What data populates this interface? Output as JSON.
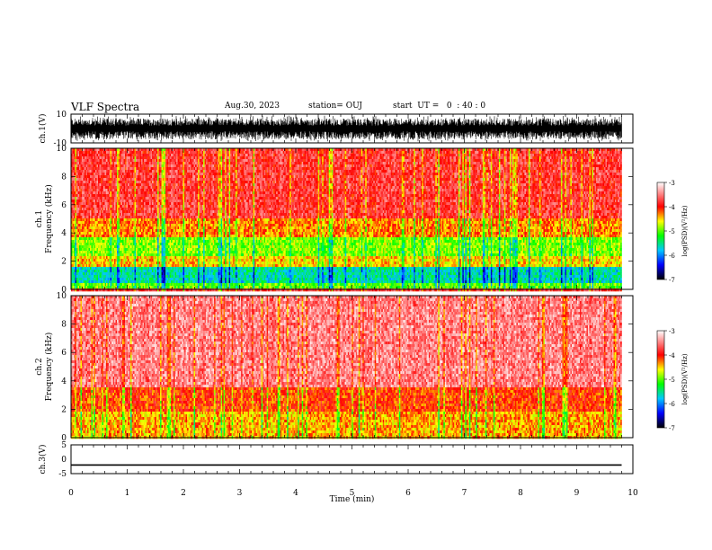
{
  "header": {
    "title": "VLF Spectra",
    "date": "Aug.30, 2023",
    "station": "station= OUJ",
    "start": "start  UT =   0  : 40 : 0"
  },
  "colors": {
    "axis": "#000000",
    "trace": "#000000",
    "colorbar_stops": [
      "#000000",
      "#0000ff",
      "#00c8ff",
      "#00ff00",
      "#ffff00",
      "#ff0000",
      "#ffffff"
    ]
  },
  "chart_data": [
    {
      "type": "line",
      "name": "ch1-waveform",
      "ylabel": "ch.1(V)",
      "yticks": [
        "10",
        "-10"
      ],
      "ylim": [
        -10,
        10
      ],
      "x_range_min": [
        0,
        9.8
      ],
      "description_series": "dense noisy waveform between about -9 and 9 V",
      "series": [
        {
          "values_min_max": [
            -9,
            9
          ]
        }
      ]
    },
    {
      "type": "heatmap",
      "name": "ch1-spectrogram",
      "ylabel": "ch.1\nFrequency (kHz)",
      "ylabel_line1": "ch.1",
      "ylabel_line2": "Frequency (kHz)",
      "ylim": [
        0,
        10
      ],
      "yticks": [
        "0",
        "2",
        "4",
        "6",
        "8",
        "10"
      ],
      "x_range_min": [
        0,
        9.8
      ],
      "colorbar": {
        "label": "log(PSD)(V²/Hz)",
        "range": [
          -7,
          -3
        ],
        "ticks": [
          "-3",
          "-4",
          "-5",
          "-6",
          "-7"
        ]
      },
      "bands_khz": [
        {
          "from": 0.0,
          "to": 0.5,
          "level": -5.0
        },
        {
          "from": 0.5,
          "to": 1.5,
          "level": -5.6
        },
        {
          "from": 1.5,
          "to": 2.3,
          "level": -4.5
        },
        {
          "from": 2.3,
          "to": 3.6,
          "level": -4.9
        },
        {
          "from": 3.6,
          "to": 5.0,
          "level": -4.3
        },
        {
          "from": 5.0,
          "to": 10.0,
          "level": -3.8
        }
      ]
    },
    {
      "type": "heatmap",
      "name": "ch2-spectrogram",
      "ylabel_line1": "ch.2",
      "ylabel_line2": "Frequency (kHz)",
      "ylim": [
        0,
        10
      ],
      "yticks": [
        "0",
        "2",
        "4",
        "6",
        "8",
        "10"
      ],
      "x_range_min": [
        0,
        9.8
      ],
      "colorbar": {
        "label": "log(PSD)(V²/Hz)",
        "range": [
          -7,
          -3
        ],
        "ticks": [
          "-3",
          "-4",
          "-5",
          "-6",
          "-7"
        ]
      },
      "bands_khz": [
        {
          "from": 0.0,
          "to": 1.8,
          "level": -4.4
        },
        {
          "from": 1.8,
          "to": 3.5,
          "level": -4.1
        },
        {
          "from": 3.5,
          "to": 10.0,
          "level": -3.5
        }
      ]
    },
    {
      "type": "line",
      "name": "ch3-waveform",
      "ylabel": "ch.3(V)",
      "yticks": [
        "5",
        "0",
        "-5"
      ],
      "ylim": [
        -5,
        5
      ],
      "x_range_min": [
        0,
        9.8
      ],
      "series": [
        {
          "constant_value": -2
        }
      ]
    }
  ],
  "x_axis": {
    "label": "Time (min)",
    "ticks": [
      "0",
      "1",
      "2",
      "3",
      "4",
      "5",
      "6",
      "7",
      "8",
      "9",
      "10"
    ],
    "xlim": [
      0,
      10
    ]
  }
}
